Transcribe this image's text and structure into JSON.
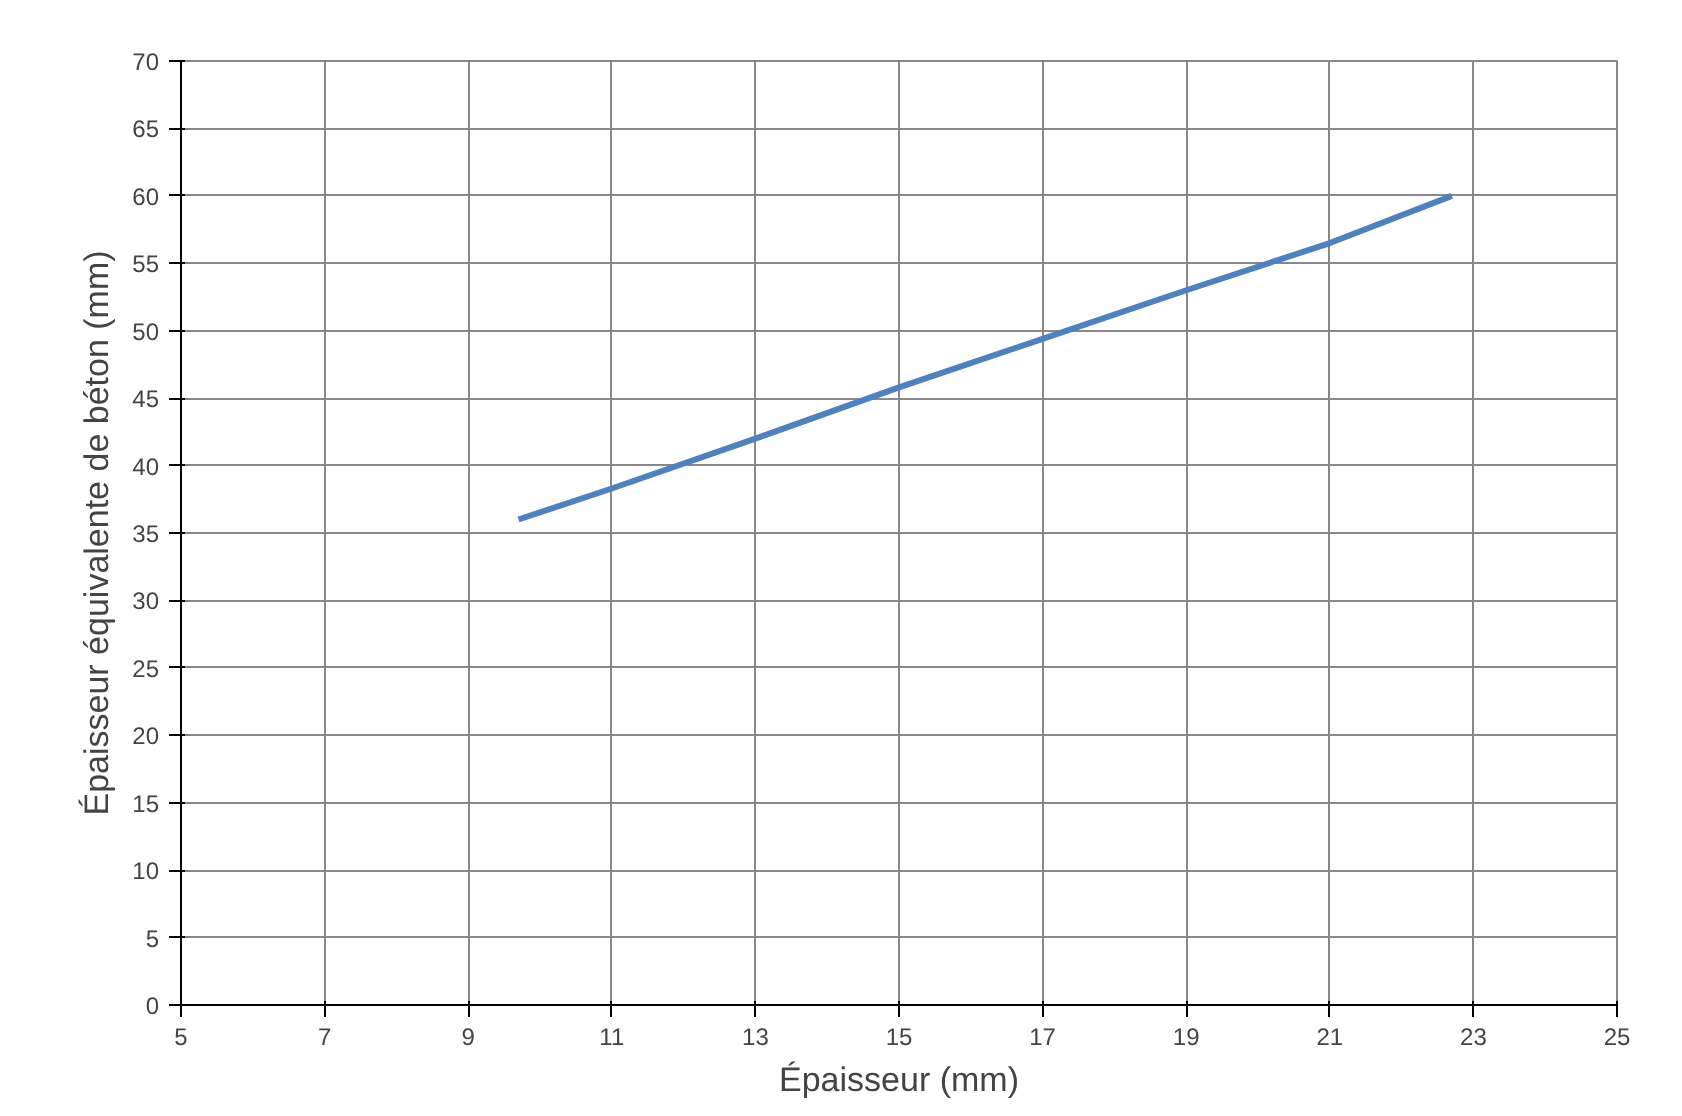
{
  "chart_data": {
    "type": "line",
    "xlabel": "Épaisseur (mm)",
    "ylabel": "Épaisseur équivalente de béton (mm)",
    "x": [
      9.7,
      11,
      13,
      15,
      17,
      19,
      21,
      22.7
    ],
    "series": [
      {
        "color": "#4f81bd",
        "values": [
          36,
          38.3,
          42,
          45.8,
          49.4,
          53,
          56.5,
          60
        ]
      }
    ],
    "xlim": [
      5,
      25
    ],
    "xticks": [
      5,
      7,
      9,
      11,
      13,
      15,
      17,
      19,
      21,
      23,
      25
    ],
    "ylim": [
      0,
      70
    ],
    "yticks": [
      0,
      5,
      10,
      15,
      20,
      25,
      30,
      35,
      40,
      45,
      50,
      55,
      60,
      65,
      70
    ],
    "grid": true,
    "marker": "none",
    "line_style": "solid"
  }
}
